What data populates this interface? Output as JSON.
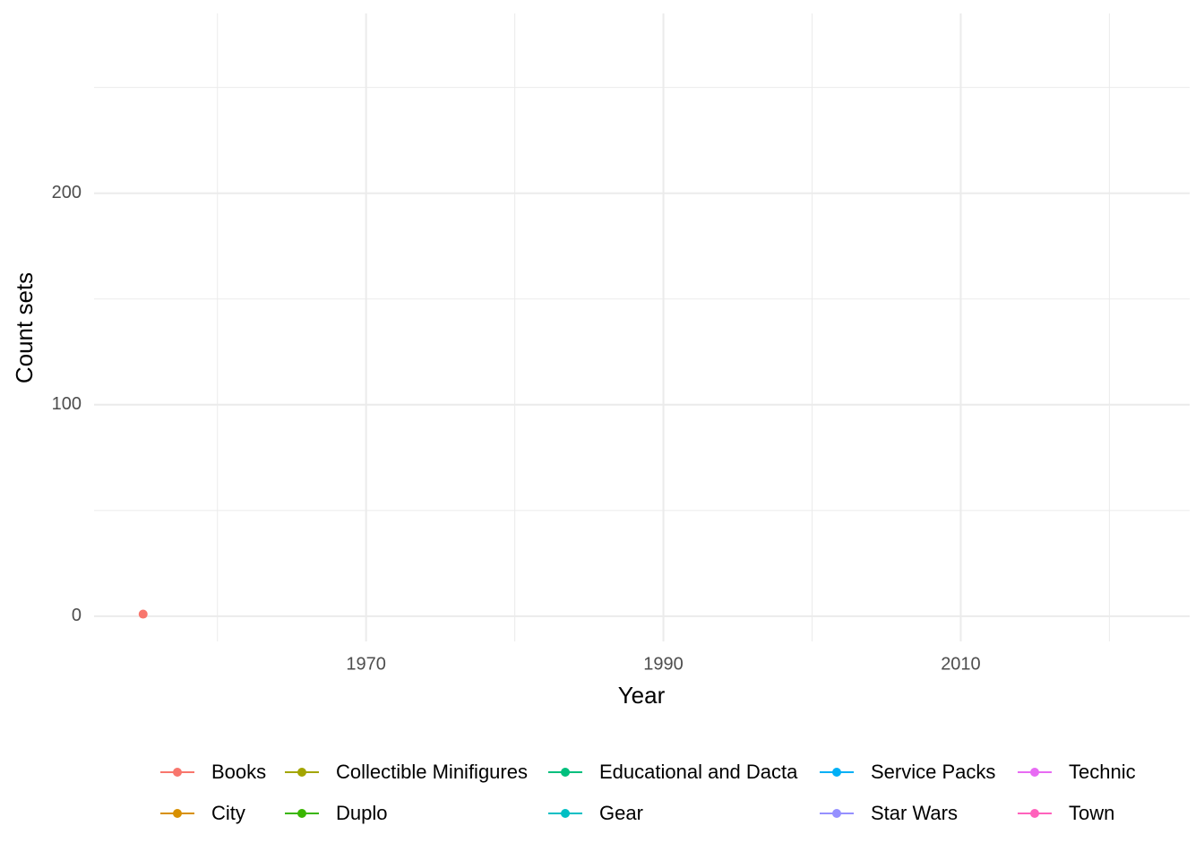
{
  "chart_data": {
    "type": "line",
    "x_label": "Year",
    "y_label": "Count sets",
    "x": [
      1955
    ],
    "series": [
      {
        "name": "Books",
        "color": "#F8766D",
        "values": [
          1
        ]
      },
      {
        "name": "City",
        "color": "#D89000",
        "values": [
          null
        ]
      },
      {
        "name": "Collectible Minifigures",
        "color": "#A3A500",
        "values": [
          null
        ]
      },
      {
        "name": "Duplo",
        "color": "#39B600",
        "values": [
          null
        ]
      },
      {
        "name": "Educational and Dacta",
        "color": "#00BF7D",
        "values": [
          null
        ]
      },
      {
        "name": "Gear",
        "color": "#00BFC4",
        "values": [
          null
        ]
      },
      {
        "name": "Service Packs",
        "color": "#00B0F6",
        "values": [
          null
        ]
      },
      {
        "name": "Star Wars",
        "color": "#9590FF",
        "values": [
          null
        ]
      },
      {
        "name": "Technic",
        "color": "#E76BF3",
        "values": [
          null
        ]
      },
      {
        "name": "Town",
        "color": "#FF62BC",
        "values": [
          null
        ]
      }
    ],
    "xlim": [
      1951.7,
      2025.4
    ],
    "xticks": [
      1970,
      1990,
      2010
    ],
    "xminor_ticks": [
      1960,
      1980,
      2000,
      2020
    ],
    "ylim": [
      -11.9,
      285
    ],
    "yticks": [
      0,
      100,
      200
    ],
    "yminor_ticks": [
      50,
      150,
      250
    ],
    "grid": true,
    "legend_position": "bottom"
  }
}
